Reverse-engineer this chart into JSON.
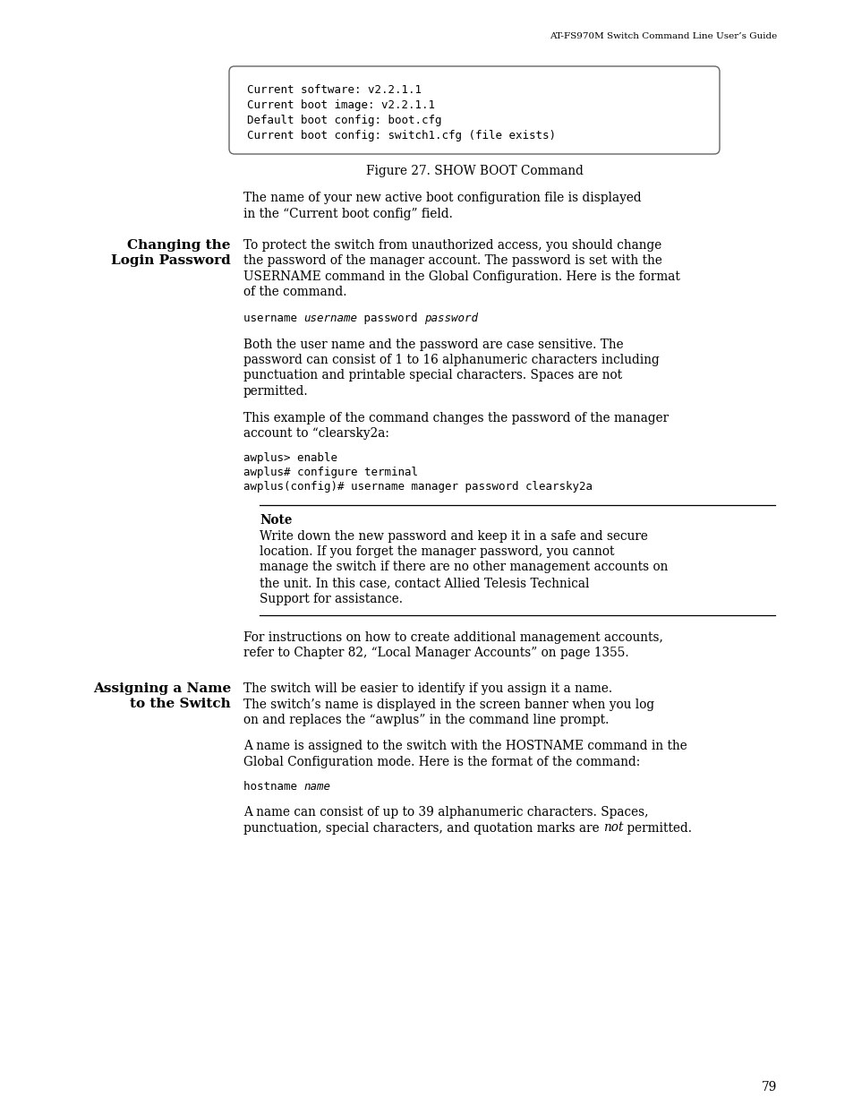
{
  "header_text": "AT-FS970M Switch Command Line User’s Guide",
  "code_box_lines": [
    "Current software: v2.2.1.1",
    "Current boot image: v2.2.1.1",
    "Default boot config: boot.cfg",
    "Current boot config: switch1.cfg (file exists)"
  ],
  "figure_caption": "Figure 27. SHOW BOOT Command",
  "para1": "The name of your new active boot configuration file is displayed in the “Current boot config” field.",
  "section1_heading_line1": "Changing the",
  "section1_heading_line2": "Login Password",
  "section1_para1": "To protect the switch from unauthorized access, you should change the password of the manager account. The password is set with the USERNAME command in the Global Configuration. Here is the format of the command.",
  "section1_para2": "Both the user name and the password are case sensitive. The password can consist of 1 to 16 alphanumeric characters including punctuation and printable special characters. Spaces are not permitted.",
  "section1_para3": "This example of the command changes the password of the manager account to “clearsky2a:",
  "code_lines2": [
    "awplus> enable",
    "awplus# configure terminal",
    "awplus(config)# username manager password clearsky2a"
  ],
  "note_title": "Note",
  "note_text": "Write down the new password and keep it in a safe and secure location. If you forget the manager password, you cannot manage the switch if there are no other management accounts on the unit. In this case, contact Allied Telesis Technical Support for assistance.",
  "para_after_note": "For instructions on how to create additional management accounts, refer to Chapter 82, “Local Manager Accounts” on page 1355.",
  "section2_heading_line1": "Assigning a Name",
  "section2_heading_line2": "to the Switch",
  "section2_para1": "The switch will be easier to identify if you assign it a name. The switch’s name is displayed in the screen banner when you log on and replaces the “awplus” in the command line prompt.",
  "section2_para2": "A name is assigned to the switch with the HOSTNAME command in the Global Configuration mode. Here is the format of the command:",
  "section2_para3_pre": "A name can consist of up to 39 alphanumeric characters. Spaces, punctuation, special characters, and quotation marks are ",
  "section2_para3_italic": "not",
  "section2_para3_post": " permitted.",
  "page_number": "79",
  "bg_color": "#ffffff",
  "text_color": "#000000"
}
